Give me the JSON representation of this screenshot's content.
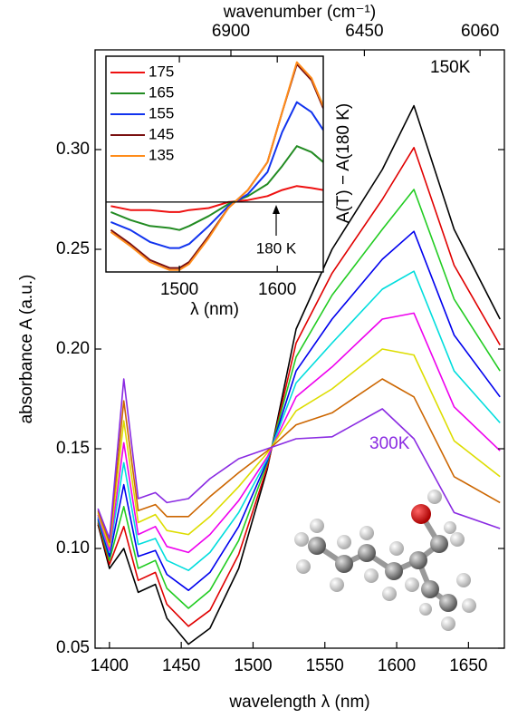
{
  "chart_data": [
    {
      "type": "line",
      "xlabel": "wavelength λ (nm)",
      "ylabel": "absorbance A (a.u.)",
      "x2label": "wavenumber (cm⁻¹)",
      "xlim": [
        1390,
        1675
      ],
      "ylim": [
        0.05,
        0.35
      ],
      "xticks": [
        1400,
        1450,
        1500,
        1550,
        1600,
        1650
      ],
      "yticks": [
        0.05,
        {
          "value": 0.1,
          "label": "0.10"
        },
        0.15,
        {
          "value": 0.2,
          "label": "0.20"
        },
        0.25,
        {
          "value": 0.3,
          "label": "0.30"
        }
      ],
      "x2lim": [
        7358,
        5978
      ],
      "x2ticks": [
        6900,
        6450,
        6060
      ],
      "annotations": [
        "150K",
        "300K"
      ],
      "annotation_colors": [
        "#000000",
        "#8a2be2"
      ],
      "x": [
        1392,
        1400,
        1410,
        1420,
        1432,
        1440,
        1455,
        1470,
        1490,
        1510,
        1530,
        1555,
        1590,
        1612,
        1640,
        1672
      ],
      "series": [
        {
          "color": "#000000",
          "values": [
            0.112,
            0.09,
            0.1,
            0.078,
            0.082,
            0.065,
            0.052,
            0.06,
            0.09,
            0.14,
            0.21,
            0.25,
            0.29,
            0.322,
            0.26,
            0.215
          ]
        },
        {
          "color": "#e00000",
          "values": [
            0.113,
            0.092,
            0.111,
            0.084,
            0.088,
            0.072,
            0.061,
            0.069,
            0.097,
            0.141,
            0.203,
            0.238,
            0.275,
            0.301,
            0.242,
            0.202
          ]
        },
        {
          "color": "#22cc22",
          "values": [
            0.114,
            0.094,
            0.121,
            0.09,
            0.094,
            0.08,
            0.07,
            0.079,
            0.104,
            0.143,
            0.196,
            0.227,
            0.26,
            0.28,
            0.225,
            0.189
          ]
        },
        {
          "color": "#0000ee",
          "values": [
            0.115,
            0.096,
            0.132,
            0.096,
            0.099,
            0.087,
            0.079,
            0.088,
            0.111,
            0.144,
            0.189,
            0.215,
            0.245,
            0.259,
            0.207,
            0.176
          ]
        },
        {
          "color": "#00dddd",
          "values": [
            0.116,
            0.098,
            0.143,
            0.102,
            0.105,
            0.094,
            0.089,
            0.098,
            0.118,
            0.145,
            0.183,
            0.203,
            0.23,
            0.239,
            0.189,
            0.163
          ]
        },
        {
          "color": "#ee00ee",
          "values": [
            0.117,
            0.099,
            0.153,
            0.107,
            0.111,
            0.101,
            0.098,
            0.107,
            0.124,
            0.146,
            0.176,
            0.191,
            0.215,
            0.218,
            0.171,
            0.149
          ]
        },
        {
          "color": "#dddd00",
          "values": [
            0.118,
            0.101,
            0.164,
            0.113,
            0.117,
            0.109,
            0.107,
            0.116,
            0.131,
            0.148,
            0.169,
            0.18,
            0.2,
            0.197,
            0.154,
            0.136
          ]
        },
        {
          "color": "#cc6600",
          "values": [
            0.119,
            0.103,
            0.174,
            0.119,
            0.122,
            0.116,
            0.116,
            0.126,
            0.138,
            0.149,
            0.162,
            0.168,
            0.185,
            0.176,
            0.136,
            0.123
          ]
        },
        {
          "color": "#8a2be2",
          "values": [
            0.12,
            0.105,
            0.185,
            0.125,
            0.128,
            0.123,
            0.125,
            0.135,
            0.145,
            0.15,
            0.155,
            0.156,
            0.17,
            0.155,
            0.118,
            0.11
          ]
        }
      ]
    },
    {
      "type": "line",
      "xlabel": "λ (nm)",
      "ylabel": "A(T) − A(180 K)",
      "xlim": [
        1425,
        1647
      ],
      "ylim": [
        -0.035,
        0.073
      ],
      "xticks": [
        1500,
        1600
      ],
      "annotations": [
        "180 K"
      ],
      "x": [
        1430,
        1450,
        1470,
        1490,
        1500,
        1510,
        1530,
        1550,
        1570,
        1590,
        1605,
        1620,
        1635,
        1647
      ],
      "series": [
        {
          "name": "175",
          "color": "#ee1111",
          "values": [
            -0.002,
            -0.004,
            -0.004,
            -0.005,
            -0.005,
            -0.004,
            -0.003,
            0,
            0.001,
            0.003,
            0.006,
            0.008,
            0.007,
            0.006
          ]
        },
        {
          "name": "165",
          "color": "#228b22",
          "values": [
            -0.005,
            -0.009,
            -0.012,
            -0.013,
            -0.014,
            -0.012,
            -0.007,
            -0.001,
            0.003,
            0.009,
            0.018,
            0.028,
            0.025,
            0.02
          ]
        },
        {
          "name": "155",
          "color": "#1133ee",
          "values": [
            -0.01,
            -0.014,
            -0.02,
            -0.023,
            -0.023,
            -0.021,
            -0.012,
            -0.002,
            0.004,
            0.015,
            0.035,
            0.05,
            0.045,
            0.036
          ]
        },
        {
          "name": "145",
          "color": "#7a1010",
          "values": [
            -0.014,
            -0.021,
            -0.029,
            -0.033,
            -0.033,
            -0.03,
            -0.017,
            -0.003,
            0.006,
            0.02,
            0.045,
            0.069,
            0.061,
            0.047
          ]
        },
        {
          "name": "135",
          "color": "#ff8c1a",
          "values": [
            -0.015,
            -0.022,
            -0.03,
            -0.034,
            -0.034,
            -0.031,
            -0.018,
            -0.003,
            0.006,
            0.02,
            0.045,
            0.07,
            0.062,
            0.048
          ]
        }
      ]
    }
  ]
}
